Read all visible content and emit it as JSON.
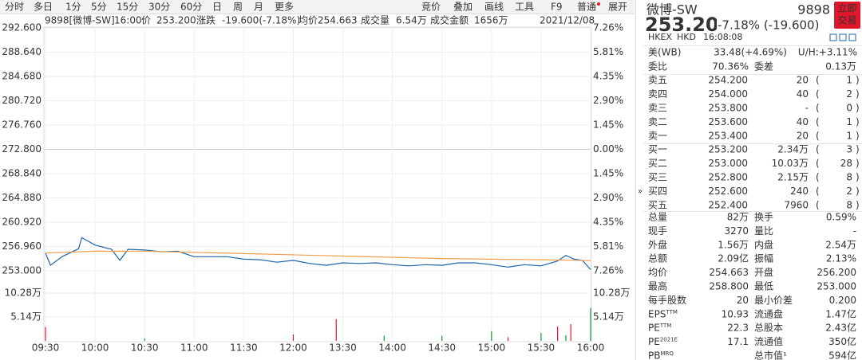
{
  "toolbar": {
    "tabs": [
      "分时",
      "多日",
      "1分",
      "5分",
      "15分",
      "30分",
      "60分",
      "日",
      "周",
      "月",
      "更多"
    ],
    "tools": [
      "竞价",
      "叠加",
      "画线",
      "工具",
      "F9",
      "普通",
      "展开"
    ]
  },
  "info_bar": {
    "stock": "9898[微博-SW]",
    "time": "16:00",
    "price_label": "价",
    "price": "253.200",
    "change_label": "涨跌",
    "change": "-19.600(-7.18%)",
    "avg_label": "均价",
    "avg": "254.663",
    "volume_label": "成交量",
    "volume": "6.54万",
    "amount_label": "成交金额",
    "amount": "1656万",
    "date": "2021/12/08"
  },
  "chart_data": {
    "type": "line",
    "xlim": [
      0,
      330
    ],
    "ylim": [
      253.0,
      292.6
    ],
    "xticks": [
      {
        "value": 0,
        "label": "09:30"
      },
      {
        "value": 30,
        "label": "10:00"
      },
      {
        "value": 60,
        "label": "10:30"
      },
      {
        "value": 90,
        "label": "11:00"
      },
      {
        "value": 120,
        "label": "11:30"
      },
      {
        "value": 150,
        "label": "12:00"
      },
      {
        "value": 180,
        "label": "13:30"
      },
      {
        "value": 210,
        "label": "14:00"
      },
      {
        "value": 240,
        "label": "14:30"
      },
      {
        "value": 270,
        "label": "15:00"
      },
      {
        "value": 300,
        "label": "15:30"
      },
      {
        "value": 330,
        "label": "16:00"
      }
    ],
    "yticks": [
      {
        "value": 292.6,
        "label": "292.600"
      },
      {
        "value": 288.64,
        "label": "288.640"
      },
      {
        "value": 284.68,
        "label": "284.680"
      },
      {
        "value": 280.72,
        "label": "280.720"
      },
      {
        "value": 276.76,
        "label": "276.760"
      },
      {
        "value": 272.8,
        "label": "272.800"
      },
      {
        "value": 268.84,
        "label": "268.840"
      },
      {
        "value": 264.88,
        "label": "264.880"
      },
      {
        "value": 260.92,
        "label": "260.920"
      },
      {
        "value": 256.96,
        "label": "256.960"
      },
      {
        "value": 253.0,
        "label": "253.000"
      }
    ],
    "pct_ticks": [
      {
        "value": 292.6,
        "label": "7.26%"
      },
      {
        "value": 288.64,
        "label": "5.81%"
      },
      {
        "value": 284.68,
        "label": "4.35%"
      },
      {
        "value": 280.72,
        "label": "2.90%"
      },
      {
        "value": 276.76,
        "label": "1.45%"
      },
      {
        "value": 272.8,
        "label": "0.00%"
      },
      {
        "value": 268.84,
        "label": "1.45%"
      },
      {
        "value": 264.88,
        "label": "2.90%"
      },
      {
        "value": 260.92,
        "label": "4.35%"
      },
      {
        "value": 256.96,
        "label": "5.81%"
      },
      {
        "value": 253.0,
        "label": "7.26%"
      }
    ],
    "prev_close": 272.8,
    "up_color": "#e0162b",
    "down_color": "#119a2e",
    "flat_color": "#888888",
    "grid": true,
    "series": [
      {
        "name": "price",
        "color": "#1e64a8",
        "x": [
          0,
          3,
          10,
          20,
          22,
          30,
          40,
          45,
          50,
          60,
          70,
          80,
          90,
          100,
          110,
          120,
          130,
          140,
          150,
          160,
          170,
          180,
          190,
          200,
          210,
          220,
          230,
          240,
          250,
          260,
          270,
          280,
          290,
          300,
          310,
          315,
          320,
          325,
          330
        ],
        "values": [
          255.9,
          253.9,
          255.3,
          256.6,
          258.4,
          257.2,
          256.5,
          254.7,
          256.5,
          256.4,
          256.1,
          256.2,
          255.3,
          255.3,
          255.3,
          254.9,
          254.8,
          254.4,
          254.7,
          254.2,
          253.9,
          254.3,
          254.2,
          254.3,
          254.0,
          253.8,
          254.0,
          253.9,
          254.3,
          254.3,
          254.0,
          253.6,
          254.0,
          253.8,
          254.6,
          255.5,
          254.9,
          254.7,
          253.2
        ]
      },
      {
        "name": "average",
        "color": "#f0a050",
        "x": [
          0,
          30,
          60,
          120,
          180,
          240,
          300,
          330
        ],
        "values": [
          255.9,
          256.2,
          256.2,
          255.8,
          255.4,
          255.0,
          254.8,
          254.663
        ]
      }
    ],
    "volume": {
      "ylim": [
        0,
        102800
      ],
      "yticks": [
        {
          "value": 102800,
          "label": "10.28万"
        },
        {
          "value": 51400,
          "label": "5.14万"
        }
      ],
      "x": [
        0,
        60,
        150,
        176,
        205,
        240,
        270,
        280,
        300,
        310,
        315,
        318,
        330
      ],
      "values": [
        30000,
        5000,
        14000,
        47000,
        11000,
        11000,
        21000,
        8000,
        17000,
        31000,
        12000,
        36000,
        71000
      ],
      "colors": [
        "#e0162b",
        "#119a2e",
        "#e0162b",
        "#e0162b",
        "#119a2e",
        "#119a2e",
        "#119a2e",
        "#e0162b",
        "#119a2e",
        "#e0162b",
        "#119a2e",
        "#e0162b",
        "#119a2e"
      ]
    }
  },
  "quote": {
    "name": "微博-SW",
    "code": "9898",
    "trade_button": [
      "立即",
      "交易"
    ],
    "price": "253.200",
    "change": "-7.18% (-19.600)",
    "exchange": "HKEX",
    "currency": "HKD",
    "time": "16:08:08",
    "us_row": [
      "美(WB)",
      "33.48(+4.69%)",
      "U/H:+3.11%"
    ],
    "ratio_row": [
      "委比",
      "70.36%",
      "委差",
      "0.13万"
    ],
    "asks": [
      {
        "label": "卖五",
        "price": "254.200",
        "volume": "20",
        "orders": "1"
      },
      {
        "label": "卖四",
        "price": "254.000",
        "volume": "40",
        "orders": "2"
      },
      {
        "label": "卖三",
        "price": "253.800",
        "volume": "-",
        "orders": "0"
      },
      {
        "label": "卖二",
        "price": "253.600",
        "volume": "40",
        "orders": "1"
      },
      {
        "label": "卖一",
        "price": "253.400",
        "volume": "20",
        "orders": "1"
      }
    ],
    "bids": [
      {
        "label": "买一",
        "price": "253.200",
        "volume": "2.34万",
        "orders": "3"
      },
      {
        "label": "买二",
        "price": "253.000",
        "volume": "10.03万",
        "orders": "28"
      },
      {
        "label": "买三",
        "price": "252.800",
        "volume": "2.15万",
        "orders": "8"
      },
      {
        "label": "买四",
        "price": "252.600",
        "volume": "240",
        "orders": "2"
      },
      {
        "label": "买五",
        "price": "252.400",
        "volume": "7960",
        "orders": "8"
      }
    ],
    "stats": [
      {
        "cells": [
          "总量",
          "82万",
          "换手",
          "0.59%"
        ],
        "colors": [
          "#222",
          "#222"
        ]
      },
      {
        "cells": [
          "现手",
          "3270",
          "量比",
          "-"
        ],
        "colors": [
          "#222",
          "#222"
        ]
      },
      {
        "cells": [
          "外盘",
          "1.56万",
          "内盘",
          "2.54万"
        ],
        "colors": [
          "#e0162b",
          "#119a2e"
        ]
      },
      {
        "cells": [
          "总额",
          "2.09亿",
          "振幅",
          "2.13%"
        ],
        "colors": [
          "#222",
          "#222"
        ]
      },
      {
        "cells": [
          "均价",
          "254.663",
          "开盘",
          "256.200"
        ],
        "colors": [
          "#119a2e",
          "#119a2e"
        ]
      },
      {
        "cells": [
          "最高",
          "258.800",
          "最低",
          "253.000"
        ],
        "colors": [
          "#e0162b",
          "#119a2e"
        ]
      },
      {
        "cells": [
          "每手股数",
          "20",
          "最小价差",
          "0.200"
        ],
        "colors": [
          "#222",
          "#222"
        ]
      },
      {
        "cells": [
          "EPS",
          "10.93",
          "流通盘",
          "1.47亿"
        ],
        "sup": "TTM",
        "colors": [
          "#222",
          "#222"
        ]
      },
      {
        "cells": [
          "PE",
          "22.3",
          "总股本",
          "2.43亿"
        ],
        "sup": "TTM",
        "colors": [
          "#222",
          "#222"
        ]
      },
      {
        "cells": [
          "PE",
          "17.1",
          "流通值",
          "350亿"
        ],
        "sup": "2021E",
        "colors": [
          "#222",
          "#222"
        ]
      },
      {
        "cells": [
          "PB",
          "",
          "总市值¹",
          "594亿"
        ],
        "sup": "MRQ",
        "colors": [
          "#222",
          "#222"
        ]
      }
    ]
  }
}
